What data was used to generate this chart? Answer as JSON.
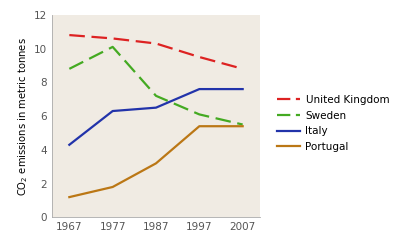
{
  "years": [
    1967,
    1977,
    1987,
    1997,
    2007
  ],
  "united_kingdom": [
    10.8,
    10.6,
    10.3,
    9.5,
    8.8
  ],
  "sweden": [
    8.8,
    10.1,
    7.2,
    6.1,
    5.5
  ],
  "italy": [
    4.3,
    6.3,
    6.5,
    7.6,
    7.6
  ],
  "portugal": [
    1.2,
    1.8,
    3.2,
    5.4,
    5.4
  ],
  "uk_color": "#dd2222",
  "sweden_color": "#44aa22",
  "italy_color": "#2233aa",
  "portugal_color": "#bb7715",
  "ylabel": "CO$_2$ emissions in metric tonnes",
  "ylim": [
    0,
    12
  ],
  "xlim": [
    1963,
    2011
  ],
  "yticks": [
    0,
    2,
    4,
    6,
    8,
    10,
    12
  ],
  "xticks": [
    1967,
    1977,
    1987,
    1997,
    2007
  ],
  "plot_bg_color": "#f0ebe3",
  "legend_bg_color": "#ffffff",
  "legend_labels": [
    "United Kingdom",
    "Sweden",
    "Italy",
    "Portugal"
  ]
}
